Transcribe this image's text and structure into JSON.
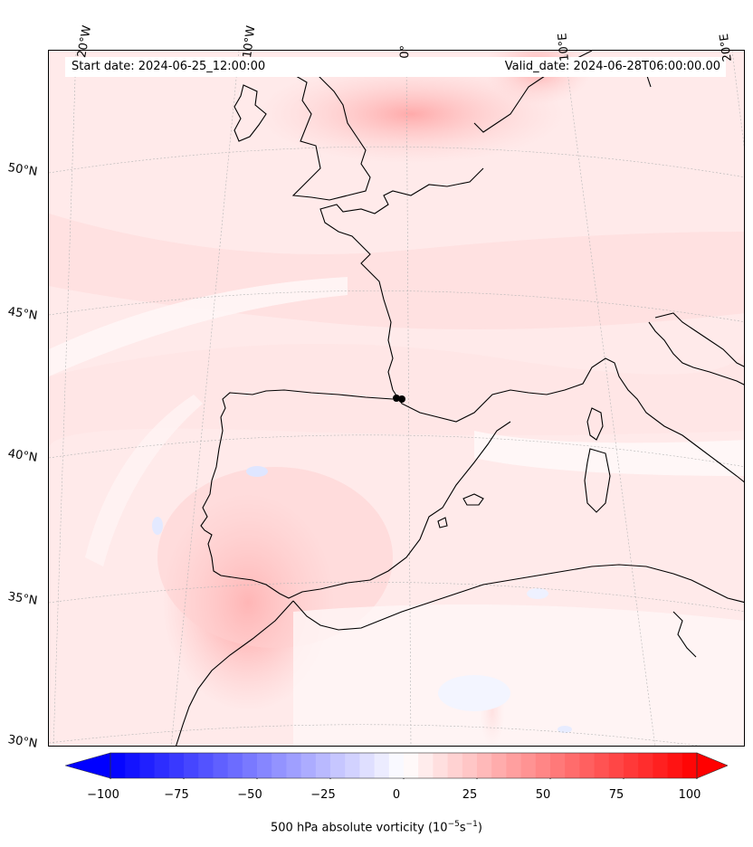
{
  "header": {
    "start_date": "Start date: 2024-06-25_12:00:00",
    "valid_date": "Valid_date: 2024-06-28T06:00:00.00"
  },
  "longitude_labels": [
    "20°W",
    "10°W",
    "0°",
    "10°E",
    "20°E"
  ],
  "latitude_labels": [
    "50°N",
    "45°N",
    "40°N",
    "35°N",
    "30°N"
  ],
  "colorbar": {
    "ticks": [
      "−100",
      "−75",
      "−50",
      "−25",
      "0",
      "25",
      "50",
      "75",
      "100"
    ],
    "label_prefix": "500 hPa absolute vorticity (10",
    "label_exp1": "−5",
    "label_mid": "s",
    "label_exp2": "−1",
    "label_suffix": ")",
    "min": -100,
    "max": 100,
    "extend": "both",
    "colormap": "bwr",
    "low_color": "#0000ff",
    "mid_color": "#ffffff",
    "high_color": "#ff0000"
  },
  "map": {
    "projection": "conic",
    "background_field": "light red",
    "coastline_color": "#000000",
    "gridlines": "dotted grey"
  }
}
